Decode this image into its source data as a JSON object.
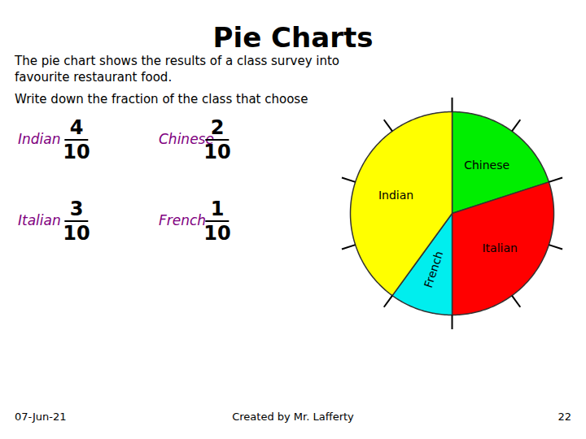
{
  "chart_data": {
    "type": "pie",
    "title": "Pie Charts",
    "subtitle": [
      "The pie chart shows the results of a class survey into",
      "favourite restaurant food."
    ],
    "question": "Write down the fraction of the class that choose",
    "categories": [
      "Chinese",
      "Italian",
      "French",
      "Indian"
    ],
    "values": [
      2,
      3,
      1,
      4
    ],
    "colors": [
      "#00EE00",
      "#FF0000",
      "#00EEEE",
      "#FFFF00"
    ],
    "fractions": [
      {
        "label": "Indian",
        "numerator": 4,
        "denominator": 10
      },
      {
        "label": "Chinese",
        "numerator": 2,
        "denominator": 10
      },
      {
        "label": "Italian",
        "numerator": 3,
        "denominator": 10
      },
      {
        "label": "French",
        "numerator": 1,
        "denominator": 10
      }
    ],
    "fraction_label_color": "#800080",
    "footer": [
      "07-Jun-21",
      "Created by Mr. Lafferty",
      "22"
    ]
  }
}
